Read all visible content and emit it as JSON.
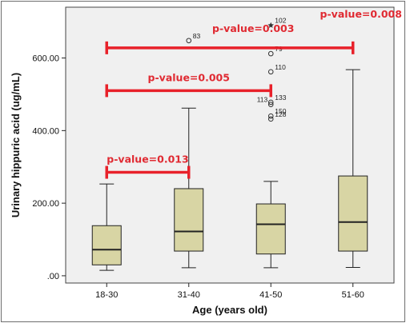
{
  "chart_data": {
    "type": "boxplot",
    "title": "",
    "xlabel": "Age (years old)",
    "ylabel": "Urinary hippuric acid (ug/mL)",
    "ylim": [
      -20,
      740
    ],
    "yticks": [
      0,
      200,
      400,
      600
    ],
    "ytick_labels": [
      ".00",
      "200.00",
      "400.00",
      "600.00"
    ],
    "categories": [
      "18-30",
      "31-40",
      "41-50",
      "51-60"
    ],
    "boxes": [
      {
        "category": "18-30",
        "min": 15,
        "q1": 30,
        "median": 72,
        "q3": 138,
        "max": 253
      },
      {
        "category": "31-40",
        "min": 22,
        "q1": 68,
        "median": 122,
        "q3": 240,
        "max": 462
      },
      {
        "category": "41-50",
        "min": 22,
        "q1": 60,
        "median": 142,
        "q3": 198,
        "max": 260
      },
      {
        "category": "51-60",
        "min": 23,
        "q1": 68,
        "median": 148,
        "q3": 275,
        "max": 568
      }
    ],
    "outliers": [
      {
        "category": "31-40",
        "value": 648,
        "label": "83",
        "marker": "circle"
      },
      {
        "category": "41-50",
        "value": 690,
        "label": "102",
        "marker": "star"
      },
      {
        "category": "41-50",
        "value": 612,
        "label": "79",
        "marker": "circle"
      },
      {
        "category": "41-50",
        "value": 562,
        "label": "110",
        "marker": "circle"
      },
      {
        "category": "41-50",
        "value": 478,
        "label": "133",
        "marker": "circle"
      },
      {
        "category": "41-50",
        "value": 472,
        "label": "113",
        "marker": "circle"
      },
      {
        "category": "41-50",
        "value": 440,
        "label": "150",
        "marker": "circle"
      },
      {
        "category": "41-50",
        "value": 432,
        "label": "128",
        "marker": "circle"
      }
    ],
    "significance_brackets": [
      {
        "from": "18-30",
        "to": "31-40",
        "value": 285,
        "label": "p-value=0.013"
      },
      {
        "from": "18-30",
        "to": "41-50",
        "value": 510,
        "label": "p-value=0.005"
      },
      {
        "from": "18-30",
        "to": "51-60",
        "value": 628,
        "label": "p-value=0.003"
      },
      {
        "from": "18-30",
        "to": "51-60",
        "value": 628,
        "label": "p-value=0.008"
      }
    ],
    "colors": {
      "plot_background": "#f0f0f0",
      "box_fill": "#d8d5a4",
      "box_stroke": "#222222",
      "bracket": "#e8212a",
      "pvalue_text": "#e02a32"
    },
    "grid": false
  }
}
